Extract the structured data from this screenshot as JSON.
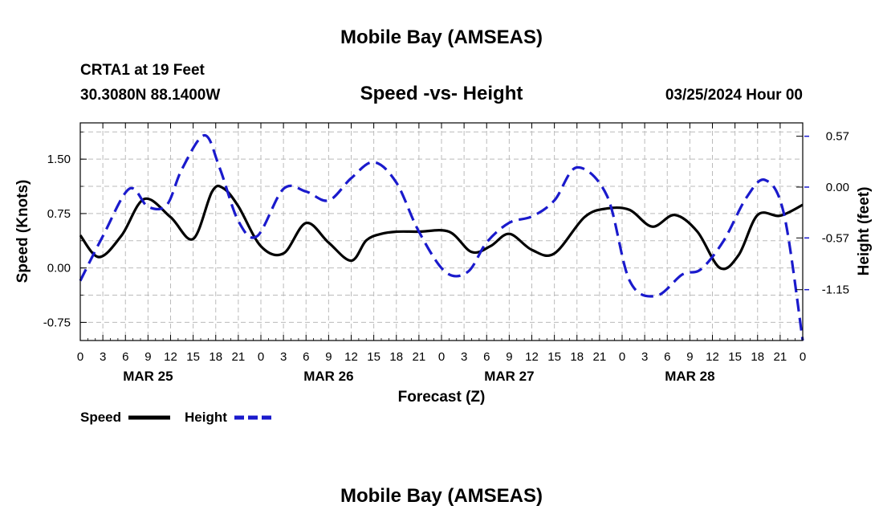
{
  "header": {
    "title": "Mobile Bay (AMSEAS)",
    "station": "CRTA1 at 19 Feet",
    "coords": "30.3080N  88.1400W",
    "chart_title": "Speed -vs- Height",
    "run_time": "03/25/2024 Hour 00"
  },
  "footer": {
    "title": "Mobile Bay (AMSEAS)"
  },
  "legend": {
    "speed_label": "Speed",
    "height_label": "Height"
  },
  "chart_data": {
    "type": "line",
    "xlabel": "Forecast (Z)",
    "ylabel_left": "Speed (Knots)",
    "ylabel_right": "Height (feet)",
    "x_range_hours": [
      0,
      96
    ],
    "x_tick_step_hours": 3,
    "x_tick_labels": [
      "0",
      "3",
      "6",
      "9",
      "12",
      "15",
      "18",
      "21",
      "0",
      "3",
      "6",
      "9",
      "12",
      "15",
      "18",
      "21",
      "0",
      "3",
      "6",
      "9",
      "12",
      "15",
      "18",
      "21",
      "0",
      "3",
      "6",
      "9",
      "12",
      "15",
      "18",
      "21",
      "0"
    ],
    "date_labels": [
      {
        "label": "MAR 25",
        "hour": 9
      },
      {
        "label": "MAR 26",
        "hour": 33
      },
      {
        "label": "MAR 27",
        "hour": 57
      },
      {
        "label": "MAR 28",
        "hour": 81
      }
    ],
    "ylim_left": [
      -1.0,
      2.0
    ],
    "yticks_left": [
      "1.50",
      "0.75",
      "0.00",
      "-0.75"
    ],
    "ylim_right": [
      -1.72,
      0.72
    ],
    "yticks_right": [
      "0.57",
      "0.00",
      "-0.57",
      "-1.15"
    ],
    "grid": true,
    "legend_placement": "bottom-left",
    "series": [
      {
        "name": "Speed",
        "axis": "left",
        "color": "#000000",
        "dash": "solid",
        "x": [
          0,
          2.5,
          5.5,
          8.5,
          12,
          15,
          17.5,
          19,
          21,
          24,
          27,
          30,
          33,
          36,
          38,
          40,
          42,
          45,
          49,
          52,
          54.5,
          57,
          60,
          63,
          67,
          70,
          73,
          76,
          79,
          82,
          85,
          87.5,
          90,
          93,
          96
        ],
        "y": [
          0.45,
          0.15,
          0.45,
          0.95,
          0.7,
          0.4,
          1.05,
          1.1,
          0.85,
          0.3,
          0.2,
          0.62,
          0.35,
          0.1,
          0.38,
          0.47,
          0.5,
          0.5,
          0.5,
          0.22,
          0.3,
          0.47,
          0.25,
          0.2,
          0.7,
          0.82,
          0.8,
          0.57,
          0.73,
          0.5,
          0.0,
          0.18,
          0.73,
          0.72,
          0.87
        ]
      },
      {
        "name": "Height",
        "axis": "right",
        "color": "#1a1acc",
        "dash": "dashed",
        "x": [
          0,
          3,
          6.5,
          9,
          11.5,
          13.5,
          16.5,
          18.5,
          21,
          23.5,
          27,
          30,
          33,
          36,
          39,
          42,
          45,
          48.5,
          51.5,
          54,
          57,
          60,
          63,
          66,
          70,
          73,
          76.5,
          80,
          82.5,
          85.5,
          88.5,
          91,
          93.5,
          96
        ],
        "y": [
          -1.05,
          -0.55,
          -0.02,
          -0.22,
          -0.2,
          0.2,
          0.58,
          0.22,
          -0.38,
          -0.55,
          -0.02,
          -0.05,
          -0.15,
          0.1,
          0.28,
          0.05,
          -0.5,
          -0.95,
          -0.95,
          -0.62,
          -0.4,
          -0.33,
          -0.15,
          0.22,
          -0.1,
          -1.05,
          -1.22,
          -0.98,
          -0.92,
          -0.6,
          -0.12,
          0.08,
          -0.3,
          -1.72
        ]
      }
    ]
  }
}
